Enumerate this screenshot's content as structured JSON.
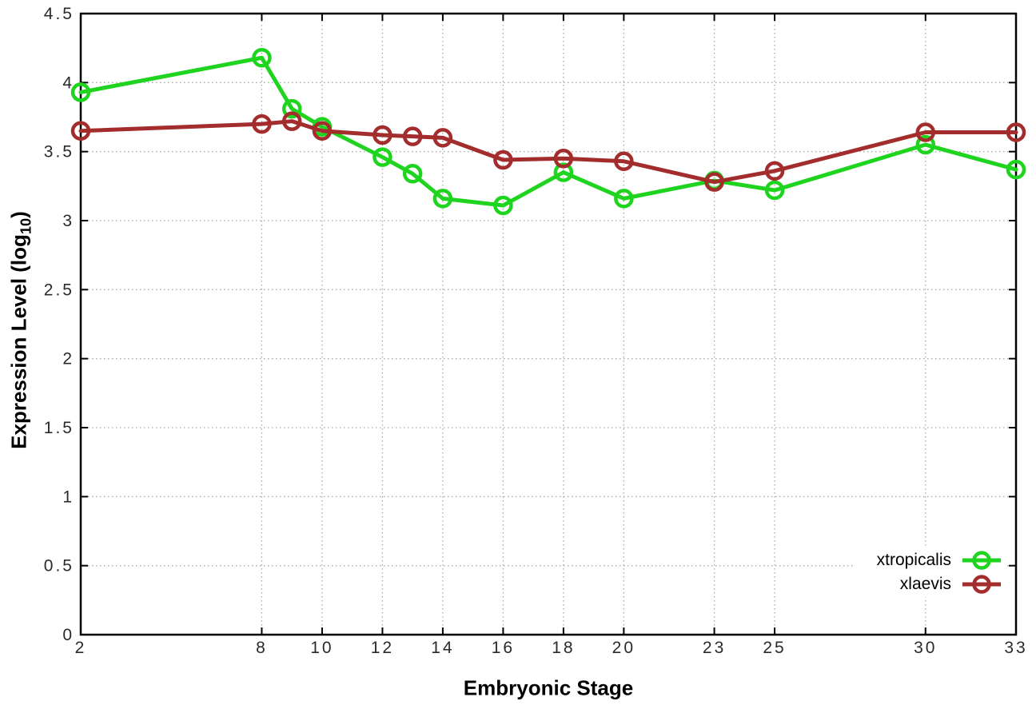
{
  "labels": {
    "xlabel": "Embryonic Stage",
    "ylabel_main": "Expression Level (log",
    "ylabel_sub": "10",
    "ylabel_close": ")"
  },
  "chart_data": {
    "type": "line",
    "title": "",
    "xlabel": "Embryonic Stage",
    "ylabel": "Expression Level (log10)",
    "x": [
      2,
      8,
      9,
      10,
      12,
      13,
      14,
      16,
      18,
      20,
      23,
      25,
      30,
      33
    ],
    "series": [
      {
        "name": "xtropicalis",
        "color": "#1fd41f",
        "values": [
          3.93,
          4.18,
          3.81,
          3.68,
          3.46,
          3.34,
          3.16,
          3.11,
          3.35,
          3.16,
          3.29,
          3.22,
          3.55,
          3.37
        ]
      },
      {
        "name": "xlaevis",
        "color": "#a32c2c",
        "values": [
          3.65,
          3.7,
          3.72,
          3.65,
          3.62,
          3.61,
          3.6,
          3.44,
          3.45,
          3.43,
          3.28,
          3.36,
          3.64,
          3.64
        ]
      }
    ],
    "xticks": [
      2,
      8,
      10,
      12,
      14,
      16,
      18,
      20,
      23,
      25,
      30,
      33
    ],
    "yticks": [
      0,
      0.5,
      1,
      1.5,
      2,
      2.5,
      3,
      3.5,
      4,
      4.5
    ],
    "xlim": [
      2,
      33
    ],
    "ylim": [
      0,
      4.5
    ],
    "grid": true,
    "marker": "open-circle",
    "legend_position": "inside-lower-right",
    "colors": {
      "axis": "#000000",
      "grid": "#a9a9a9",
      "tick_text": "#2a2a2a"
    }
  }
}
